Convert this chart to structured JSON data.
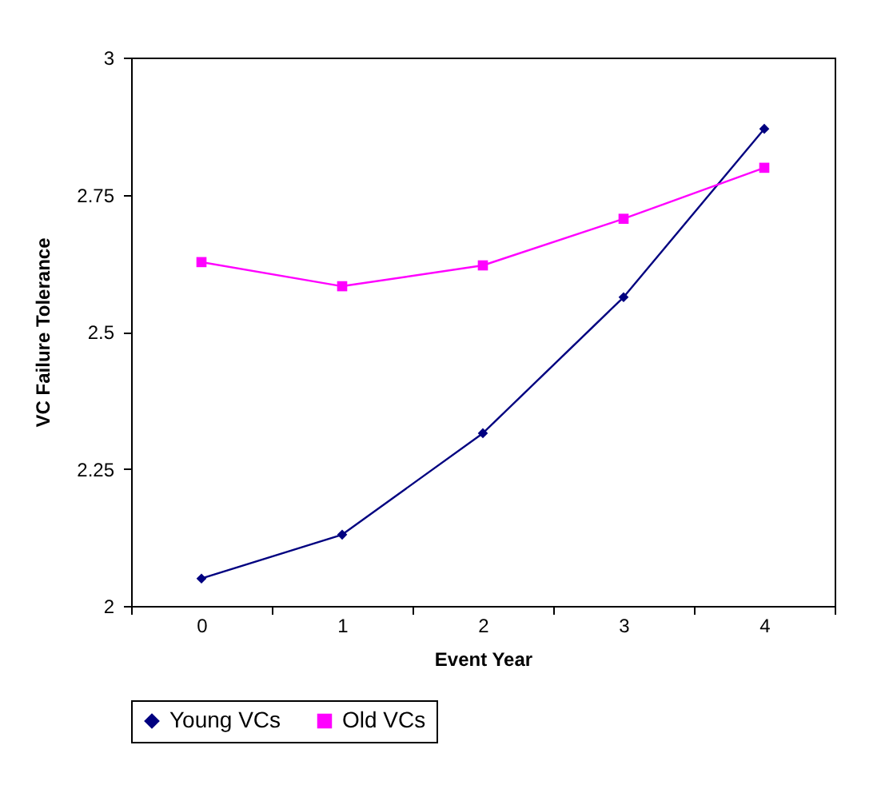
{
  "chart_data": {
    "type": "line",
    "xlabel": "Event Year",
    "ylabel": "VC Failure Tolerance",
    "categories": [
      "0",
      "1",
      "2",
      "3",
      "4"
    ],
    "ylim": [
      2,
      3
    ],
    "yticks": [
      2,
      2.25,
      2.5,
      2.75,
      3
    ],
    "grid": false,
    "legend": "bottom",
    "line_style": "solid",
    "series": [
      {
        "name": "Young VCs",
        "color": "#000080",
        "marker": "diamond",
        "values": [
          2.05,
          2.13,
          2.315,
          2.563,
          2.87
        ]
      },
      {
        "name": "Old VCs",
        "color": "#ff00ff",
        "marker": "square",
        "values": [
          2.627,
          2.583,
          2.621,
          2.706,
          2.799
        ]
      }
    ]
  }
}
